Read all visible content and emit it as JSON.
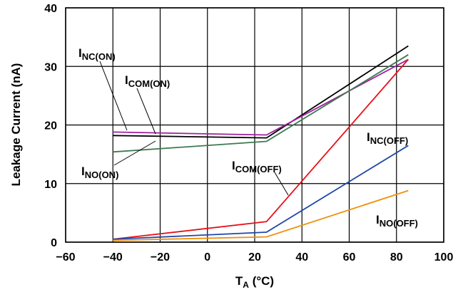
{
  "chart_data": {
    "type": "line",
    "xlabel": {
      "main": "T",
      "sub": "A",
      "unit": " (°C)"
    },
    "ylabel": "Leakage Current (nA)",
    "xlim": [
      -60,
      100
    ],
    "ylim": [
      0,
      40
    ],
    "x_ticks": [
      "−60",
      "−40",
      "−20",
      "0",
      "20",
      "40",
      "60",
      "80",
      "100"
    ],
    "y_ticks": [
      "0",
      "10",
      "20",
      "30",
      "40"
    ],
    "grid": true,
    "series": [
      {
        "name": {
          "main": "I",
          "sub": "NC(ON)"
        },
        "color": "#000000",
        "x": [
          -40,
          25,
          85
        ],
        "y": [
          18.2,
          17.8,
          33.5
        ]
      },
      {
        "name": {
          "main": "I",
          "sub": "COM(ON)"
        },
        "color": "#a020a0",
        "x": [
          -40,
          25,
          85
        ],
        "y": [
          18.8,
          18.3,
          31.2
        ]
      },
      {
        "name": {
          "main": "I",
          "sub": "NO(ON)"
        },
        "color": "#3c7a50",
        "x": [
          -40,
          25,
          85
        ],
        "y": [
          15.4,
          17.2,
          32.0
        ]
      },
      {
        "name": {
          "main": "I",
          "sub": "COM(OFF)"
        },
        "color": "#e8101a",
        "x": [
          -40,
          25,
          85
        ],
        "y": [
          0.5,
          3.5,
          31.2
        ]
      },
      {
        "name": {
          "main": "I",
          "sub": "NC(OFF)"
        },
        "color": "#2048a8",
        "x": [
          -40,
          25,
          85
        ],
        "y": [
          0.5,
          1.7,
          16.5
        ]
      },
      {
        "name": {
          "main": "I",
          "sub": "NO(OFF)"
        },
        "color": "#f0900a",
        "x": [
          -40,
          25,
          85
        ],
        "y": [
          0.3,
          0.9,
          8.8
        ]
      }
    ]
  }
}
